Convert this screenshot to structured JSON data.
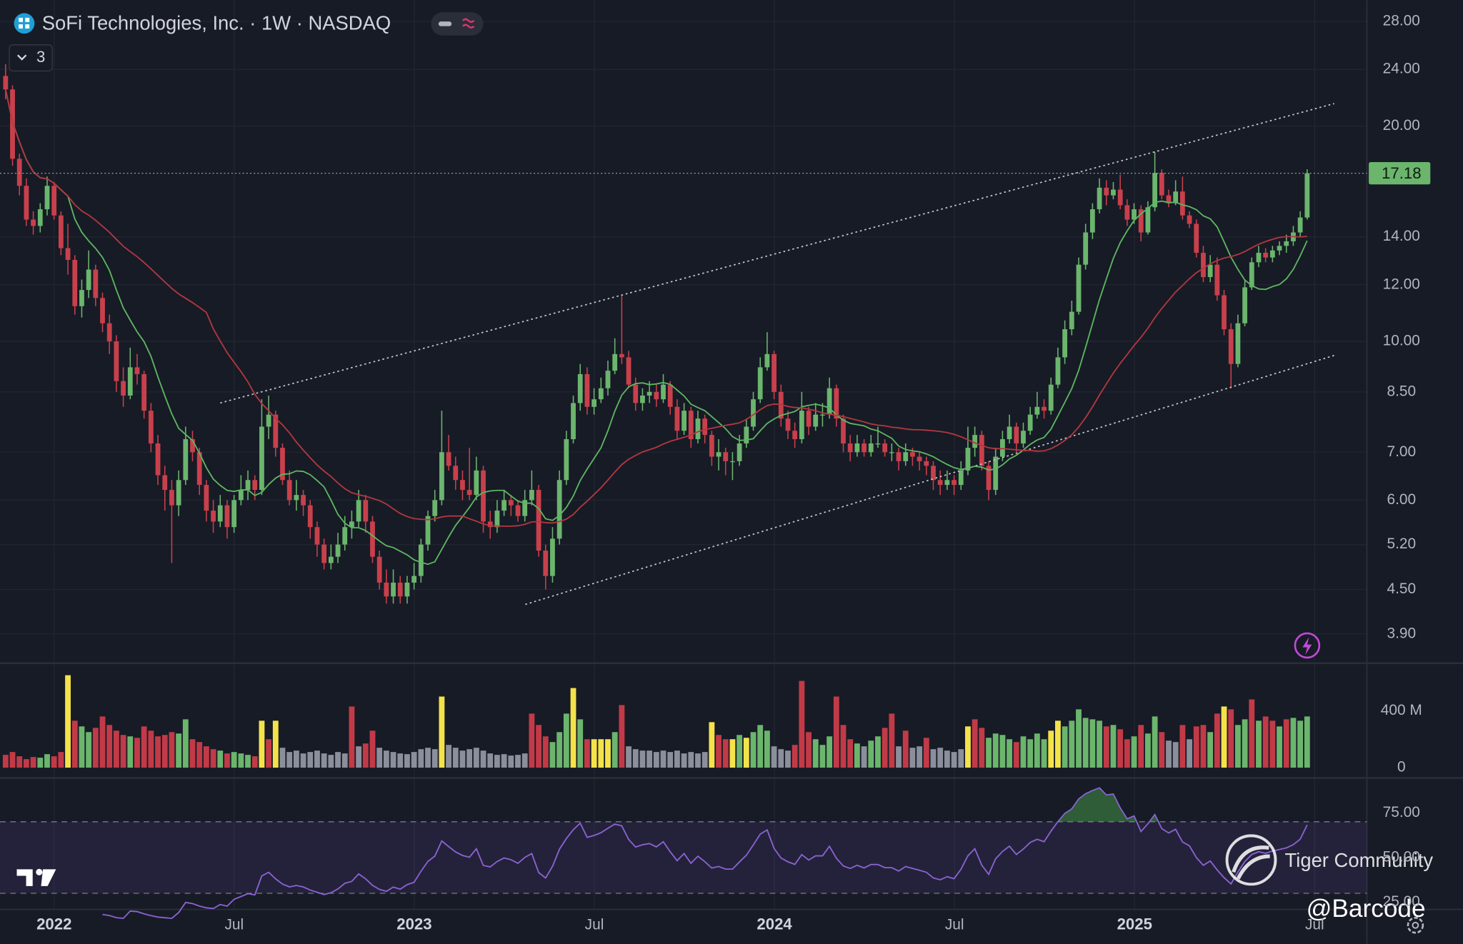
{
  "chart_data": {
    "type": "candlestick",
    "title": "SoFi Technologies, Inc. · 1W · NASDAQ",
    "indicators_shown": 3,
    "log_scale": true,
    "grid": true,
    "up_color": "#6bb56d",
    "down_color": "#c8404b",
    "ylim": [
      3.56,
      30
    ],
    "yticks": [
      {
        "value": 28,
        "label": "28.00"
      },
      {
        "value": 24,
        "label": "24.00"
      },
      {
        "value": 20,
        "label": "20.00"
      },
      {
        "value": 14,
        "label": "14.00"
      },
      {
        "value": 12,
        "label": "12.00"
      },
      {
        "value": 10,
        "label": "10.00"
      },
      {
        "value": 8.5,
        "label": "8.50"
      },
      {
        "value": 7,
        "label": "7.00"
      },
      {
        "value": 6,
        "label": "6.00"
      },
      {
        "value": 5.2,
        "label": "5.20"
      },
      {
        "value": 4.5,
        "label": "4.50"
      },
      {
        "value": 3.9,
        "label": "3.90"
      }
    ],
    "x_labels": [
      "2022",
      "Jul",
      "2023",
      "Jul",
      "2024",
      "Jul",
      "2025",
      "Jul"
    ],
    "ohlc": [
      [
        23.5,
        24.4,
        21.8,
        22.5
      ],
      [
        22.5,
        22.8,
        17.6,
        18.0
      ],
      [
        18.0,
        18.3,
        16.0,
        16.5
      ],
      [
        16.5,
        16.9,
        14.5,
        14.8
      ],
      [
        14.8,
        15.2,
        14.1,
        14.5
      ],
      [
        14.5,
        15.6,
        14.2,
        15.3
      ],
      [
        15.3,
        17.0,
        15.0,
        16.5
      ],
      [
        16.5,
        16.7,
        14.8,
        15.0
      ],
      [
        15.0,
        15.2,
        13.2,
        13.5
      ],
      [
        13.5,
        14.6,
        12.4,
        13.0
      ],
      [
        13.0,
        13.2,
        10.9,
        11.2
      ],
      [
        11.2,
        12.2,
        10.8,
        11.8
      ],
      [
        11.8,
        13.4,
        11.5,
        12.6
      ],
      [
        12.6,
        12.8,
        11.2,
        11.5
      ],
      [
        11.5,
        11.7,
        10.3,
        10.6
      ],
      [
        10.6,
        10.9,
        9.6,
        10.0
      ],
      [
        10.0,
        10.2,
        8.5,
        8.8
      ],
      [
        8.8,
        9.2,
        8.1,
        8.4
      ],
      [
        8.4,
        9.8,
        8.3,
        9.2
      ],
      [
        9.2,
        9.6,
        8.7,
        9.0
      ],
      [
        9.0,
        9.1,
        7.8,
        8.0
      ],
      [
        8.0,
        8.2,
        7.0,
        7.2
      ],
      [
        7.2,
        7.4,
        6.3,
        6.5
      ],
      [
        6.5,
        6.7,
        5.8,
        6.2
      ],
      [
        6.2,
        6.4,
        4.9,
        5.9
      ],
      [
        5.9,
        6.6,
        5.7,
        6.4
      ],
      [
        6.4,
        7.6,
        6.3,
        7.3
      ],
      [
        7.3,
        7.5,
        6.8,
        7.0
      ],
      [
        7.0,
        7.1,
        6.1,
        6.3
      ],
      [
        6.3,
        6.4,
        5.6,
        5.8
      ],
      [
        5.8,
        6.0,
        5.4,
        5.6
      ],
      [
        5.6,
        6.1,
        5.5,
        5.9
      ],
      [
        5.9,
        6.0,
        5.3,
        5.5
      ],
      [
        5.5,
        6.1,
        5.4,
        6.0
      ],
      [
        6.0,
        6.5,
        5.9,
        6.2
      ],
      [
        6.2,
        6.6,
        6.0,
        6.4
      ],
      [
        6.4,
        6.5,
        6.0,
        6.2
      ],
      [
        6.2,
        8.3,
        6.1,
        7.6
      ],
      [
        7.6,
        8.4,
        7.3,
        7.9
      ],
      [
        7.9,
        8.0,
        6.9,
        7.1
      ],
      [
        7.1,
        7.2,
        6.3,
        6.4
      ],
      [
        6.4,
        6.6,
        5.9,
        6.0
      ],
      [
        6.0,
        6.4,
        5.8,
        6.1
      ],
      [
        6.1,
        6.2,
        5.7,
        5.9
      ],
      [
        5.9,
        6.0,
        5.3,
        5.5
      ],
      [
        5.5,
        5.6,
        5.0,
        5.2
      ],
      [
        5.2,
        5.3,
        4.8,
        4.9
      ],
      [
        4.9,
        5.2,
        4.8,
        5.0
      ],
      [
        5.0,
        5.4,
        4.9,
        5.2
      ],
      [
        5.2,
        5.7,
        5.1,
        5.5
      ],
      [
        5.5,
        5.8,
        5.3,
        5.6
      ],
      [
        5.6,
        6.2,
        5.5,
        6.0
      ],
      [
        6.0,
        6.1,
        5.4,
        5.6
      ],
      [
        5.6,
        5.7,
        4.9,
        5.0
      ],
      [
        5.0,
        5.1,
        4.5,
        4.6
      ],
      [
        4.6,
        4.8,
        4.3,
        4.4
      ],
      [
        4.4,
        4.8,
        4.3,
        4.6
      ],
      [
        4.6,
        4.7,
        4.3,
        4.4
      ],
      [
        4.4,
        4.7,
        4.3,
        4.6
      ],
      [
        4.6,
        4.9,
        4.5,
        4.7
      ],
      [
        4.7,
        5.3,
        4.6,
        5.2
      ],
      [
        5.2,
        5.8,
        5.1,
        5.7
      ],
      [
        5.7,
        6.2,
        5.6,
        6.0
      ],
      [
        6.0,
        8.0,
        5.9,
        7.0
      ],
      [
        7.0,
        7.4,
        6.6,
        6.7
      ],
      [
        6.7,
        6.9,
        6.2,
        6.4
      ],
      [
        6.4,
        6.6,
        6.0,
        6.2
      ],
      [
        6.2,
        7.1,
        6.0,
        6.1
      ],
      [
        6.1,
        6.9,
        6.0,
        6.6
      ],
      [
        6.6,
        6.7,
        5.4,
        5.6
      ],
      [
        5.6,
        5.8,
        5.3,
        5.5
      ],
      [
        5.5,
        6.0,
        5.4,
        5.8
      ],
      [
        5.8,
        6.2,
        5.7,
        6.0
      ],
      [
        6.0,
        6.1,
        5.7,
        5.9
      ],
      [
        5.9,
        6.0,
        5.6,
        5.7
      ],
      [
        5.7,
        6.2,
        5.6,
        6.0
      ],
      [
        6.0,
        6.6,
        5.9,
        6.2
      ],
      [
        6.2,
        6.3,
        5.0,
        5.1
      ],
      [
        5.1,
        5.2,
        4.5,
        4.7
      ],
      [
        4.7,
        5.5,
        4.6,
        5.3
      ],
      [
        5.3,
        6.6,
        5.2,
        6.4
      ],
      [
        6.4,
        7.5,
        6.3,
        7.3
      ],
      [
        7.3,
        8.4,
        7.2,
        8.2
      ],
      [
        8.2,
        9.3,
        8.0,
        9.0
      ],
      [
        9.0,
        9.2,
        7.9,
        8.1
      ],
      [
        8.1,
        8.6,
        7.9,
        8.3
      ],
      [
        8.3,
        8.9,
        8.2,
        8.6
      ],
      [
        8.6,
        9.4,
        8.4,
        9.1
      ],
      [
        9.1,
        10.1,
        9.0,
        9.6
      ],
      [
        9.6,
        11.6,
        9.3,
        9.5
      ],
      [
        9.5,
        9.7,
        8.6,
        8.7
      ],
      [
        8.7,
        8.9,
        8.0,
        8.2
      ],
      [
        8.2,
        8.6,
        8.0,
        8.4
      ],
      [
        8.4,
        8.8,
        8.2,
        8.5
      ],
      [
        8.5,
        8.7,
        8.1,
        8.3
      ],
      [
        8.3,
        9.0,
        8.2,
        8.7
      ],
      [
        8.7,
        8.8,
        7.9,
        8.1
      ],
      [
        8.1,
        8.3,
        7.3,
        7.5
      ],
      [
        7.5,
        8.2,
        7.4,
        8.0
      ],
      [
        8.0,
        8.1,
        7.1,
        7.3
      ],
      [
        7.3,
        8.0,
        7.2,
        7.8
      ],
      [
        7.8,
        7.9,
        7.2,
        7.4
      ],
      [
        7.4,
        7.5,
        6.7,
        6.9
      ],
      [
        6.9,
        7.3,
        6.6,
        7.0
      ],
      [
        7.0,
        7.1,
        6.5,
        6.8
      ],
      [
        6.8,
        7.0,
        6.4,
        6.8
      ],
      [
        6.8,
        7.4,
        6.7,
        7.2
      ],
      [
        7.2,
        7.8,
        7.1,
        7.6
      ],
      [
        7.6,
        8.5,
        7.5,
        8.3
      ],
      [
        8.3,
        9.5,
        8.2,
        9.2
      ],
      [
        9.2,
        10.3,
        9.1,
        9.6
      ],
      [
        9.6,
        9.7,
        8.3,
        8.5
      ],
      [
        8.5,
        8.7,
        7.6,
        7.8
      ],
      [
        7.8,
        8.0,
        7.3,
        7.5
      ],
      [
        7.5,
        7.7,
        7.1,
        7.3
      ],
      [
        7.3,
        8.5,
        7.2,
        8.0
      ],
      [
        8.0,
        8.1,
        7.4,
        7.6
      ],
      [
        7.6,
        8.2,
        7.5,
        7.9
      ],
      [
        7.9,
        8.2,
        7.6,
        7.9
      ],
      [
        7.9,
        8.9,
        7.8,
        8.6
      ],
      [
        8.6,
        8.7,
        7.6,
        7.8
      ],
      [
        7.8,
        7.9,
        7.0,
        7.2
      ],
      [
        7.2,
        7.4,
        6.8,
        7.0
      ],
      [
        7.0,
        7.4,
        6.9,
        7.2
      ],
      [
        7.2,
        7.3,
        6.9,
        7.0
      ],
      [
        7.0,
        7.4,
        6.9,
        7.2
      ],
      [
        7.2,
        7.6,
        7.1,
        7.2
      ],
      [
        7.2,
        7.3,
        6.9,
        7.0
      ],
      [
        7.0,
        7.2,
        6.8,
        7.0
      ],
      [
        7.0,
        7.1,
        6.6,
        6.8
      ],
      [
        6.8,
        7.2,
        6.7,
        7.0
      ],
      [
        7.0,
        7.1,
        6.7,
        6.9
      ],
      [
        6.9,
        7.0,
        6.6,
        6.8
      ],
      [
        6.8,
        6.9,
        6.5,
        6.7
      ],
      [
        6.7,
        6.8,
        6.2,
        6.4
      ],
      [
        6.4,
        6.6,
        6.1,
        6.3
      ],
      [
        6.3,
        6.6,
        6.2,
        6.4
      ],
      [
        6.4,
        6.5,
        6.1,
        6.3
      ],
      [
        6.3,
        6.8,
        6.2,
        6.6
      ],
      [
        6.6,
        7.6,
        6.5,
        7.1
      ],
      [
        7.1,
        7.6,
        6.9,
        7.4
      ],
      [
        7.4,
        7.5,
        6.6,
        6.7
      ],
      [
        6.7,
        6.8,
        6.0,
        6.2
      ],
      [
        6.2,
        7.1,
        6.1,
        6.9
      ],
      [
        6.9,
        7.5,
        6.8,
        7.3
      ],
      [
        7.3,
        7.9,
        7.2,
        7.6
      ],
      [
        7.6,
        7.7,
        7.0,
        7.2
      ],
      [
        7.2,
        7.7,
        7.1,
        7.5
      ],
      [
        7.5,
        8.1,
        7.4,
        7.9
      ],
      [
        7.9,
        8.5,
        7.8,
        8.1
      ],
      [
        8.1,
        8.3,
        7.8,
        8.0
      ],
      [
        8.0,
        8.9,
        7.9,
        8.7
      ],
      [
        8.7,
        9.8,
        8.6,
        9.5
      ],
      [
        9.5,
        10.7,
        9.3,
        10.4
      ],
      [
        10.4,
        11.4,
        10.2,
        11.0
      ],
      [
        11.0,
        13.1,
        10.9,
        12.8
      ],
      [
        12.8,
        14.6,
        12.6,
        14.2
      ],
      [
        14.2,
        15.6,
        13.9,
        15.3
      ],
      [
        15.3,
        16.9,
        15.1,
        16.4
      ],
      [
        16.4,
        16.8,
        15.5,
        16.0
      ],
      [
        16.0,
        16.7,
        15.8,
        16.3
      ],
      [
        16.3,
        17.1,
        15.3,
        15.5
      ],
      [
        15.5,
        15.8,
        14.5,
        14.8
      ],
      [
        14.8,
        15.6,
        14.6,
        15.3
      ],
      [
        15.3,
        15.5,
        13.8,
        14.2
      ],
      [
        14.2,
        15.7,
        14.1,
        15.4
      ],
      [
        15.4,
        18.4,
        15.2,
        17.2
      ],
      [
        17.2,
        17.4,
        15.8,
        16.0
      ],
      [
        16.0,
        16.3,
        15.4,
        15.6
      ],
      [
        15.6,
        16.8,
        15.5,
        16.2
      ],
      [
        16.2,
        17.0,
        14.8,
        15.0
      ],
      [
        15.0,
        15.2,
        14.4,
        14.6
      ],
      [
        14.6,
        14.8,
        13.1,
        13.3
      ],
      [
        13.3,
        13.6,
        12.1,
        12.3
      ],
      [
        12.3,
        13.2,
        12.1,
        12.8
      ],
      [
        12.8,
        13.1,
        11.4,
        11.6
      ],
      [
        11.6,
        11.8,
        10.2,
        10.4
      ],
      [
        10.4,
        10.6,
        8.6,
        9.3
      ],
      [
        9.3,
        10.9,
        9.2,
        10.6
      ],
      [
        10.6,
        12.2,
        10.5,
        11.9
      ],
      [
        11.9,
        13.1,
        11.8,
        12.9
      ],
      [
        12.9,
        13.6,
        12.7,
        13.3
      ],
      [
        13.3,
        13.5,
        12.9,
        13.1
      ],
      [
        13.1,
        13.6,
        12.9,
        13.4
      ],
      [
        13.4,
        13.8,
        13.2,
        13.6
      ],
      [
        13.6,
        14.1,
        13.3,
        13.8
      ],
      [
        13.8,
        14.5,
        13.6,
        14.2
      ],
      [
        14.2,
        15.2,
        14.0,
        14.9
      ],
      [
        14.9,
        17.4,
        14.8,
        17.18
      ]
    ],
    "volume": [
      90,
      110,
      80,
      60,
      75,
      70,
      95,
      80,
      110,
      650,
      330,
      290,
      250,
      280,
      360,
      300,
      260,
      230,
      220,
      210,
      290,
      260,
      220,
      230,
      250,
      240,
      340,
      200,
      180,
      150,
      130,
      120,
      100,
      110,
      100,
      90,
      80,
      330,
      200,
      330,
      140,
      110,
      120,
      100,
      110,
      120,
      100,
      90,
      110,
      100,
      430,
      150,
      170,
      260,
      140,
      120,
      110,
      100,
      95,
      110,
      130,
      140,
      130,
      500,
      160,
      140,
      120,
      130,
      140,
      120,
      100,
      90,
      95,
      85,
      90,
      100,
      380,
      300,
      220,
      180,
      250,
      380,
      560,
      340,
      200,
      200,
      200,
      200,
      250,
      440,
      150,
      130,
      120,
      120,
      110,
      120,
      110,
      120,
      100,
      110,
      100,
      110,
      320,
      230,
      200,
      200,
      230,
      210,
      250,
      300,
      260,
      150,
      130,
      120,
      160,
      610,
      250,
      200,
      160,
      220,
      500,
      300,
      200,
      170,
      150,
      190,
      220,
      280,
      380,
      150,
      260,
      140,
      150,
      210,
      130,
      140,
      120,
      110,
      130,
      290,
      340,
      280,
      210,
      240,
      230,
      200,
      180,
      220,
      200,
      240,
      200,
      260,
      330,
      290,
      330,
      410,
      350,
      340,
      330,
      290,
      300,
      270,
      200,
      220,
      300,
      240,
      360,
      250,
      190,
      180,
      300,
      200,
      290,
      300,
      250,
      380,
      430,
      410,
      300,
      340,
      480,
      330,
      360,
      330,
      290,
      340,
      350,
      330,
      360
    ],
    "volume_tones": "rrrrrggrryrggrrrrrgrrrrrrggrrrrgrgggryrynnnnnnnnnnrnrrnnnnnnnnnynnnnnnnnnnnnrrrgggygryyygrnnnnnnnnnnnnyrrygygggnnnrrrgggrrrgnggrrnrnnrnnnnnyrrggggrggggyyggggggrgrrgrggrnnrnrrgryrggrgrrgrggg",
    "tone_colors": {
      "g": "#6bb56d",
      "r": "#c23a47",
      "n": "#8b8e9b",
      "y": "#f4e24a"
    },
    "volume_ylim": [
      0,
      728
    ],
    "volume_ticks": [
      0,
      {
        "value": 400,
        "label": "400 M"
      }
    ],
    "indicators": [
      {
        "kind": "sma",
        "period": 10,
        "color": "#5db760"
      },
      {
        "kind": "sma",
        "period": 30,
        "color": "#b3373f"
      }
    ],
    "rsi": {
      "period": 14,
      "color": "#8a63d2",
      "bands": [
        30,
        70
      ],
      "ylim": [
        21,
        94
      ],
      "ticks": [
        {
          "value": 75,
          "label": "75.00"
        },
        {
          "value": 50,
          "label": "50.00"
        },
        {
          "value": 25,
          "label": "25.00"
        }
      ]
    }
  },
  "watermarks": {
    "community": "Tiger Community",
    "author": "@Barcode"
  }
}
